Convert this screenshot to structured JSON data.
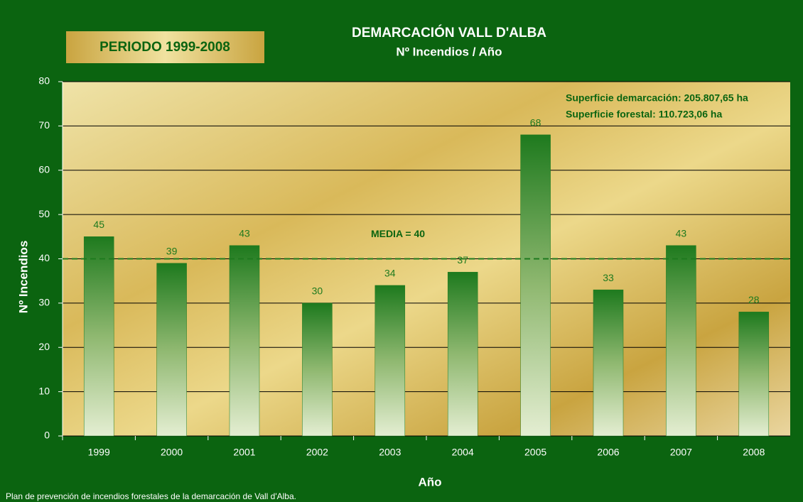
{
  "badge": "PERIODO 1999-2008",
  "footer": "Plan de prevención de incendios forestales de la demarcación de Vall d'Alba.",
  "chart_data": {
    "type": "bar",
    "title": "DEMARCACIÓN VALL D'ALBA",
    "subtitle": "Nº Incendios / Año",
    "x_label": "Año",
    "y_label": "Nº Incendios",
    "annotations": [
      "Superficie demarcación: 205.807,65 ha",
      "Superficie forestal: 110.723,06 ha"
    ],
    "categories": [
      "1999",
      "2000",
      "2001",
      "2002",
      "2003",
      "2004",
      "2005",
      "2006",
      "2007",
      "2008"
    ],
    "values": [
      45,
      39,
      43,
      30,
      34,
      37,
      68,
      33,
      43,
      28
    ],
    "color": "#1e7a1e",
    "mean_line": {
      "value": 40,
      "label": "MEDIA = 40"
    },
    "ylim": [
      0,
      80
    ],
    "yticks": [
      0,
      10,
      20,
      30,
      40,
      50,
      60,
      70,
      80
    ],
    "grid": true
  }
}
